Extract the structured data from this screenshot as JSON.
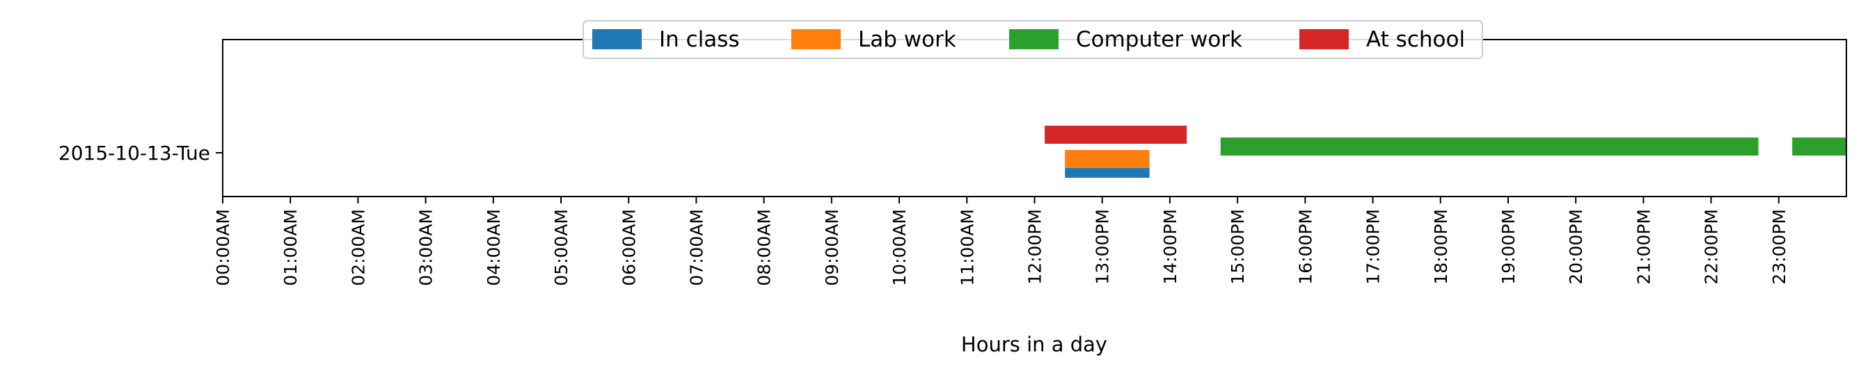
{
  "chart_data": {
    "type": "bar",
    "orientation": "horizontal-timeline",
    "xlabel": "Hours in a day",
    "xlim": [
      0,
      24
    ],
    "x_ticks": [
      {
        "value": 0,
        "label": "00:00AM"
      },
      {
        "value": 1,
        "label": "01:00AM"
      },
      {
        "value": 2,
        "label": "02:00AM"
      },
      {
        "value": 3,
        "label": "03:00AM"
      },
      {
        "value": 4,
        "label": "04:00AM"
      },
      {
        "value": 5,
        "label": "05:00AM"
      },
      {
        "value": 6,
        "label": "06:00AM"
      },
      {
        "value": 7,
        "label": "07:00AM"
      },
      {
        "value": 8,
        "label": "08:00AM"
      },
      {
        "value": 9,
        "label": "09:00AM"
      },
      {
        "value": 10,
        "label": "10:00AM"
      },
      {
        "value": 11,
        "label": "11:00AM"
      },
      {
        "value": 12,
        "label": "12:00PM"
      },
      {
        "value": 13,
        "label": "13:00PM"
      },
      {
        "value": 14,
        "label": "14:00PM"
      },
      {
        "value": 15,
        "label": "15:00PM"
      },
      {
        "value": 16,
        "label": "16:00PM"
      },
      {
        "value": 17,
        "label": "17:00PM"
      },
      {
        "value": 18,
        "label": "18:00PM"
      },
      {
        "value": 19,
        "label": "19:00PM"
      },
      {
        "value": 20,
        "label": "20:00PM"
      },
      {
        "value": 21,
        "label": "21:00PM"
      },
      {
        "value": 22,
        "label": "22:00PM"
      },
      {
        "value": 23,
        "label": "23:00PM"
      }
    ],
    "categories": [
      "2015-10-13-Tue"
    ],
    "legend_placement": "top-center",
    "grid": false,
    "series": [
      {
        "name": "In class",
        "color": "#1f77b4",
        "lane": 0,
        "intervals": [
          {
            "category": "2015-10-13-Tue",
            "start": 12.45,
            "end": 13.7
          }
        ]
      },
      {
        "name": "Lab work",
        "color": "#ff7f0e",
        "lane": 1,
        "intervals": [
          {
            "category": "2015-10-13-Tue",
            "start": 12.45,
            "end": 13.7
          }
        ]
      },
      {
        "name": "Computer work",
        "color": "#2ca02c",
        "lane": 2,
        "intervals": [
          {
            "category": "2015-10-13-Tue",
            "start": 14.75,
            "end": 22.7
          },
          {
            "category": "2015-10-13-Tue",
            "start": 23.2,
            "end": 24.0
          }
        ]
      },
      {
        "name": "At school",
        "color": "#d62728",
        "lane": 3,
        "intervals": [
          {
            "category": "2015-10-13-Tue",
            "start": 12.15,
            "end": 14.25
          }
        ]
      }
    ]
  }
}
